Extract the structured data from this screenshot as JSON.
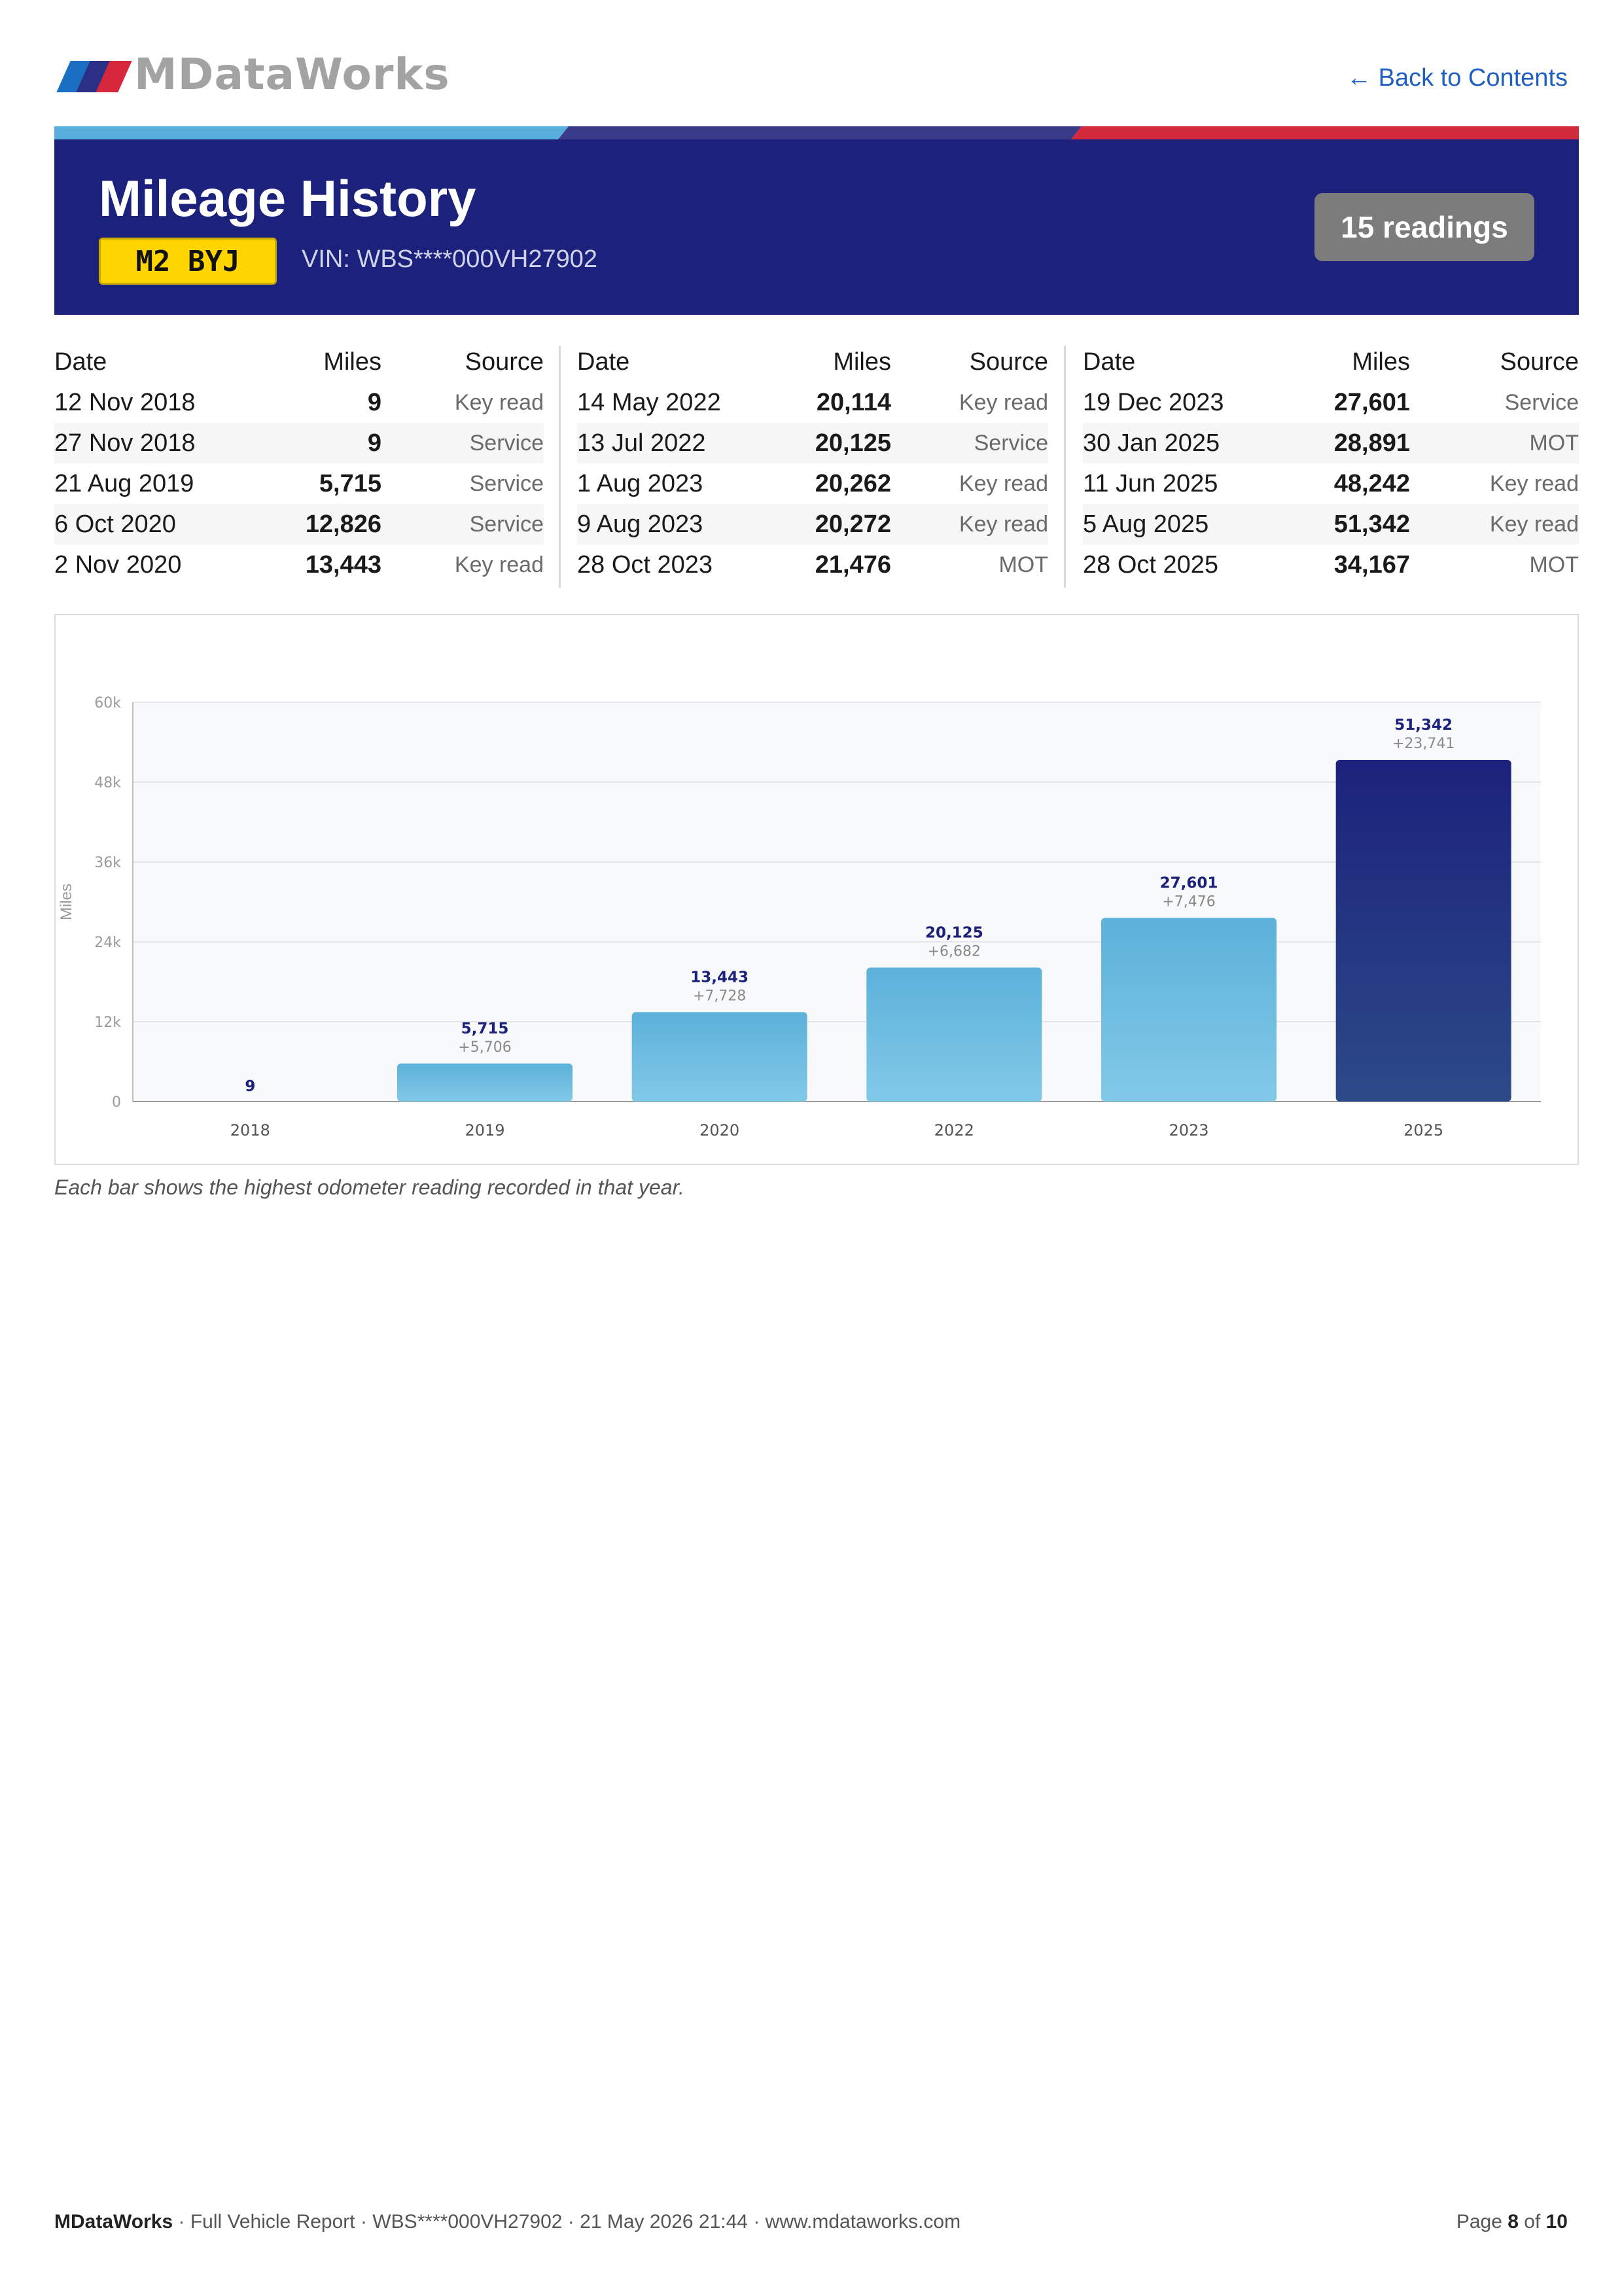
{
  "brand": {
    "logo_text": "MDataWorks",
    "stripe_colors": [
      "#1a6fc2",
      "#2b2f86",
      "#d6263b"
    ]
  },
  "nav": {
    "back_label": "← Back to Contents"
  },
  "header": {
    "title": "Mileage History",
    "plate": "M2 BYJ",
    "vin": "VIN: WBS****000VH27902",
    "readings_badge": "15 readings"
  },
  "table": {
    "headers": {
      "date": "Date",
      "miles": "Miles",
      "source": "Source"
    },
    "columns": [
      [
        {
          "date": "12 Nov 2018",
          "miles": "9",
          "source": "Key read"
        },
        {
          "date": "27 Nov 2018",
          "miles": "9",
          "source": "Service"
        },
        {
          "date": "21 Aug 2019",
          "miles": "5,715",
          "source": "Service"
        },
        {
          "date": "6 Oct 2020",
          "miles": "12,826",
          "source": "Service"
        },
        {
          "date": "2 Nov 2020",
          "miles": "13,443",
          "source": "Key read"
        }
      ],
      [
        {
          "date": "14 May 2022",
          "miles": "20,114",
          "source": "Key read"
        },
        {
          "date": "13 Jul 2022",
          "miles": "20,125",
          "source": "Service"
        },
        {
          "date": "1 Aug 2023",
          "miles": "20,262",
          "source": "Key read"
        },
        {
          "date": "9 Aug 2023",
          "miles": "20,272",
          "source": "Key read"
        },
        {
          "date": "28 Oct 2023",
          "miles": "21,476",
          "source": "MOT"
        }
      ],
      [
        {
          "date": "19 Dec 2023",
          "miles": "27,601",
          "source": "Service"
        },
        {
          "date": "30 Jan 2025",
          "miles": "28,891",
          "source": "MOT"
        },
        {
          "date": "11 Jun 2025",
          "miles": "48,242",
          "source": "Key read"
        },
        {
          "date": "5 Aug 2025",
          "miles": "51,342",
          "source": "Key read"
        },
        {
          "date": "28 Oct 2025",
          "miles": "34,167",
          "source": "MOT"
        }
      ]
    ]
  },
  "chart_data": {
    "type": "bar",
    "categories": [
      "2018",
      "2019",
      "2020",
      "2022",
      "2023",
      "2025"
    ],
    "values": [
      9,
      5715,
      13443,
      20125,
      27601,
      51342
    ],
    "value_labels": [
      "9",
      "5,715",
      "13,443",
      "20,125",
      "27,601",
      "51,342"
    ],
    "delta_labels": [
      "",
      "+5,706",
      "+7,728",
      "+6,682",
      "+7,476",
      "+23,741"
    ],
    "ylabel": "Miles",
    "ylim": [
      0,
      60000
    ],
    "yticks": [
      0,
      12000,
      24000,
      36000,
      48000,
      60000
    ],
    "ytick_labels": [
      "0",
      "12k",
      "24k",
      "36k",
      "48k",
      "60k"
    ],
    "grid": true,
    "highlight_category": "2025",
    "colors": {
      "bar": "#62b5dc",
      "highlight": "#1e2a82",
      "value_label": "#1c227c",
      "delta_label": "#8a8a8a"
    }
  },
  "chart_caption": "Each bar shows the highest odometer reading recorded in that year.",
  "footer": {
    "brand": "MDataWorks",
    "details": " · Full Vehicle Report · WBS****000VH27902 · 21 May 2026 21:44 · www.mdataworks.com",
    "page_prefix": "Page ",
    "page_current": "8",
    "page_of": " of ",
    "page_total": "10"
  }
}
